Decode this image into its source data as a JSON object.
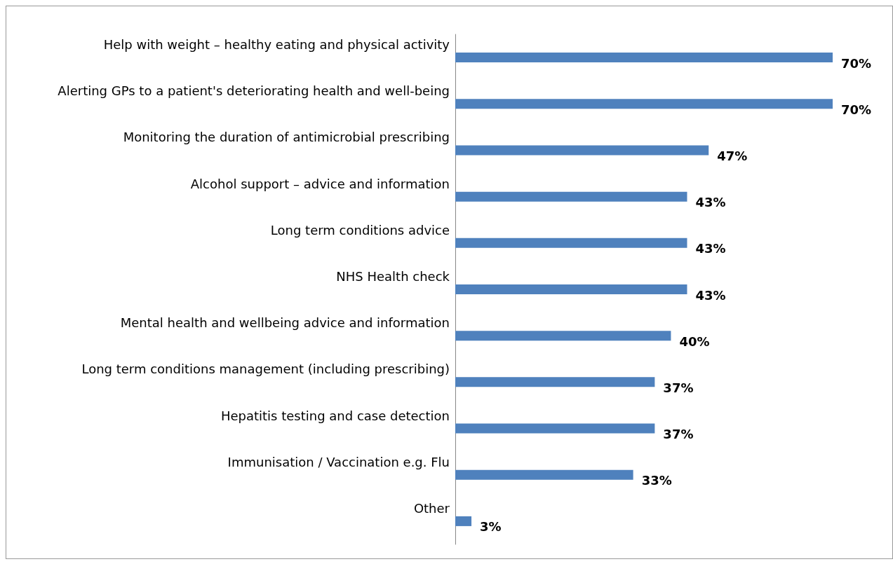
{
  "chart_data": {
    "type": "bar",
    "orientation": "horizontal",
    "categories": [
      "Help with weight – healthy eating and physical activity",
      "Alerting GPs to a patient's deteriorating health and well-being",
      "Monitoring the duration of antimicrobial prescribing",
      "Alcohol support – advice and information",
      "Long term conditions advice",
      "NHS Health check",
      "Mental health and wellbeing advice and information",
      "Long term conditions management (including prescribing)",
      "Hepatitis testing and case detection",
      "Immunisation / Vaccination e.g. Flu",
      "Other"
    ],
    "values": [
      70,
      70,
      47,
      43,
      43,
      43,
      40,
      37,
      37,
      33,
      3
    ],
    "value_labels": [
      "70%",
      "70%",
      "47%",
      "43%",
      "43%",
      "43%",
      "40%",
      "37%",
      "37%",
      "33%",
      "3%"
    ],
    "color": "#4f81bd"
  }
}
